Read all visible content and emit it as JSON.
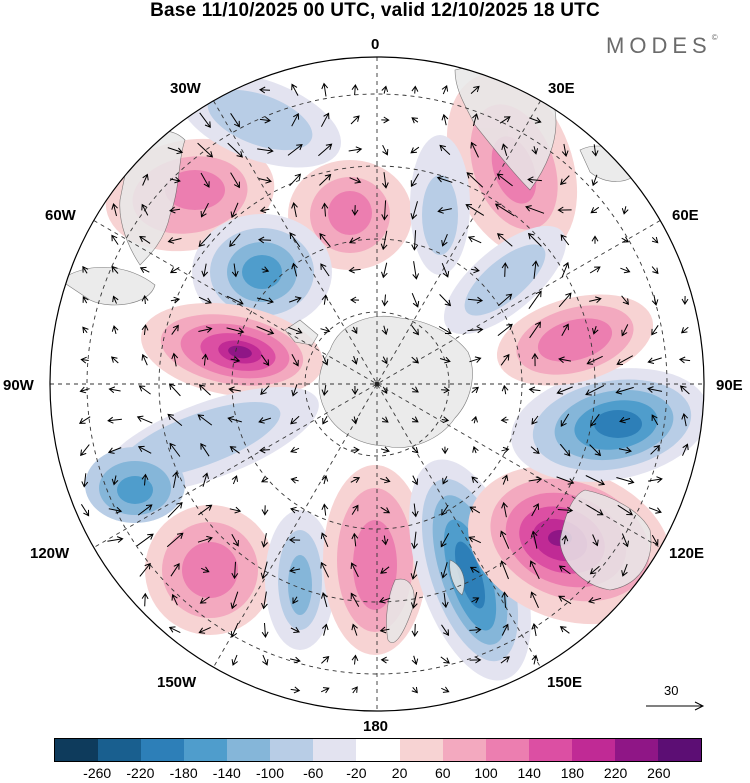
{
  "title": "Base 11/10/2025 00 UTC, valid 12/10/2025 18 UTC",
  "logo": "MODES",
  "logo_mark": "©",
  "longitude_labels": {
    "lon_0": "0",
    "lon_30e": "30E",
    "lon_60e": "60E",
    "lon_90e": "90E",
    "lon_120e": "120E",
    "lon_150e": "150E",
    "lon_180": "180",
    "lon_150w": "150W",
    "lon_120w": "120W",
    "lon_90w": "90W",
    "lon_60w": "60W",
    "lon_30w": "30W"
  },
  "colorbar": {
    "colors": [
      "#0e3b5c",
      "#195f8f",
      "#2d7fb8",
      "#4f9dcc",
      "#85b6d9",
      "#b8cde6",
      "#e3e3f0",
      "#ffffff",
      "#f7d3d3",
      "#f3a9bf",
      "#ec7eb0",
      "#dc4fa3",
      "#c02a95",
      "#8f1686",
      "#5c0e74"
    ],
    "ticks": [
      "-260",
      "-220",
      "-180",
      "-140",
      "-100",
      "-60",
      "-20",
      "20",
      "60",
      "100",
      "140",
      "180",
      "220",
      "260"
    ]
  },
  "reference_vector": {
    "label": "30"
  }
}
